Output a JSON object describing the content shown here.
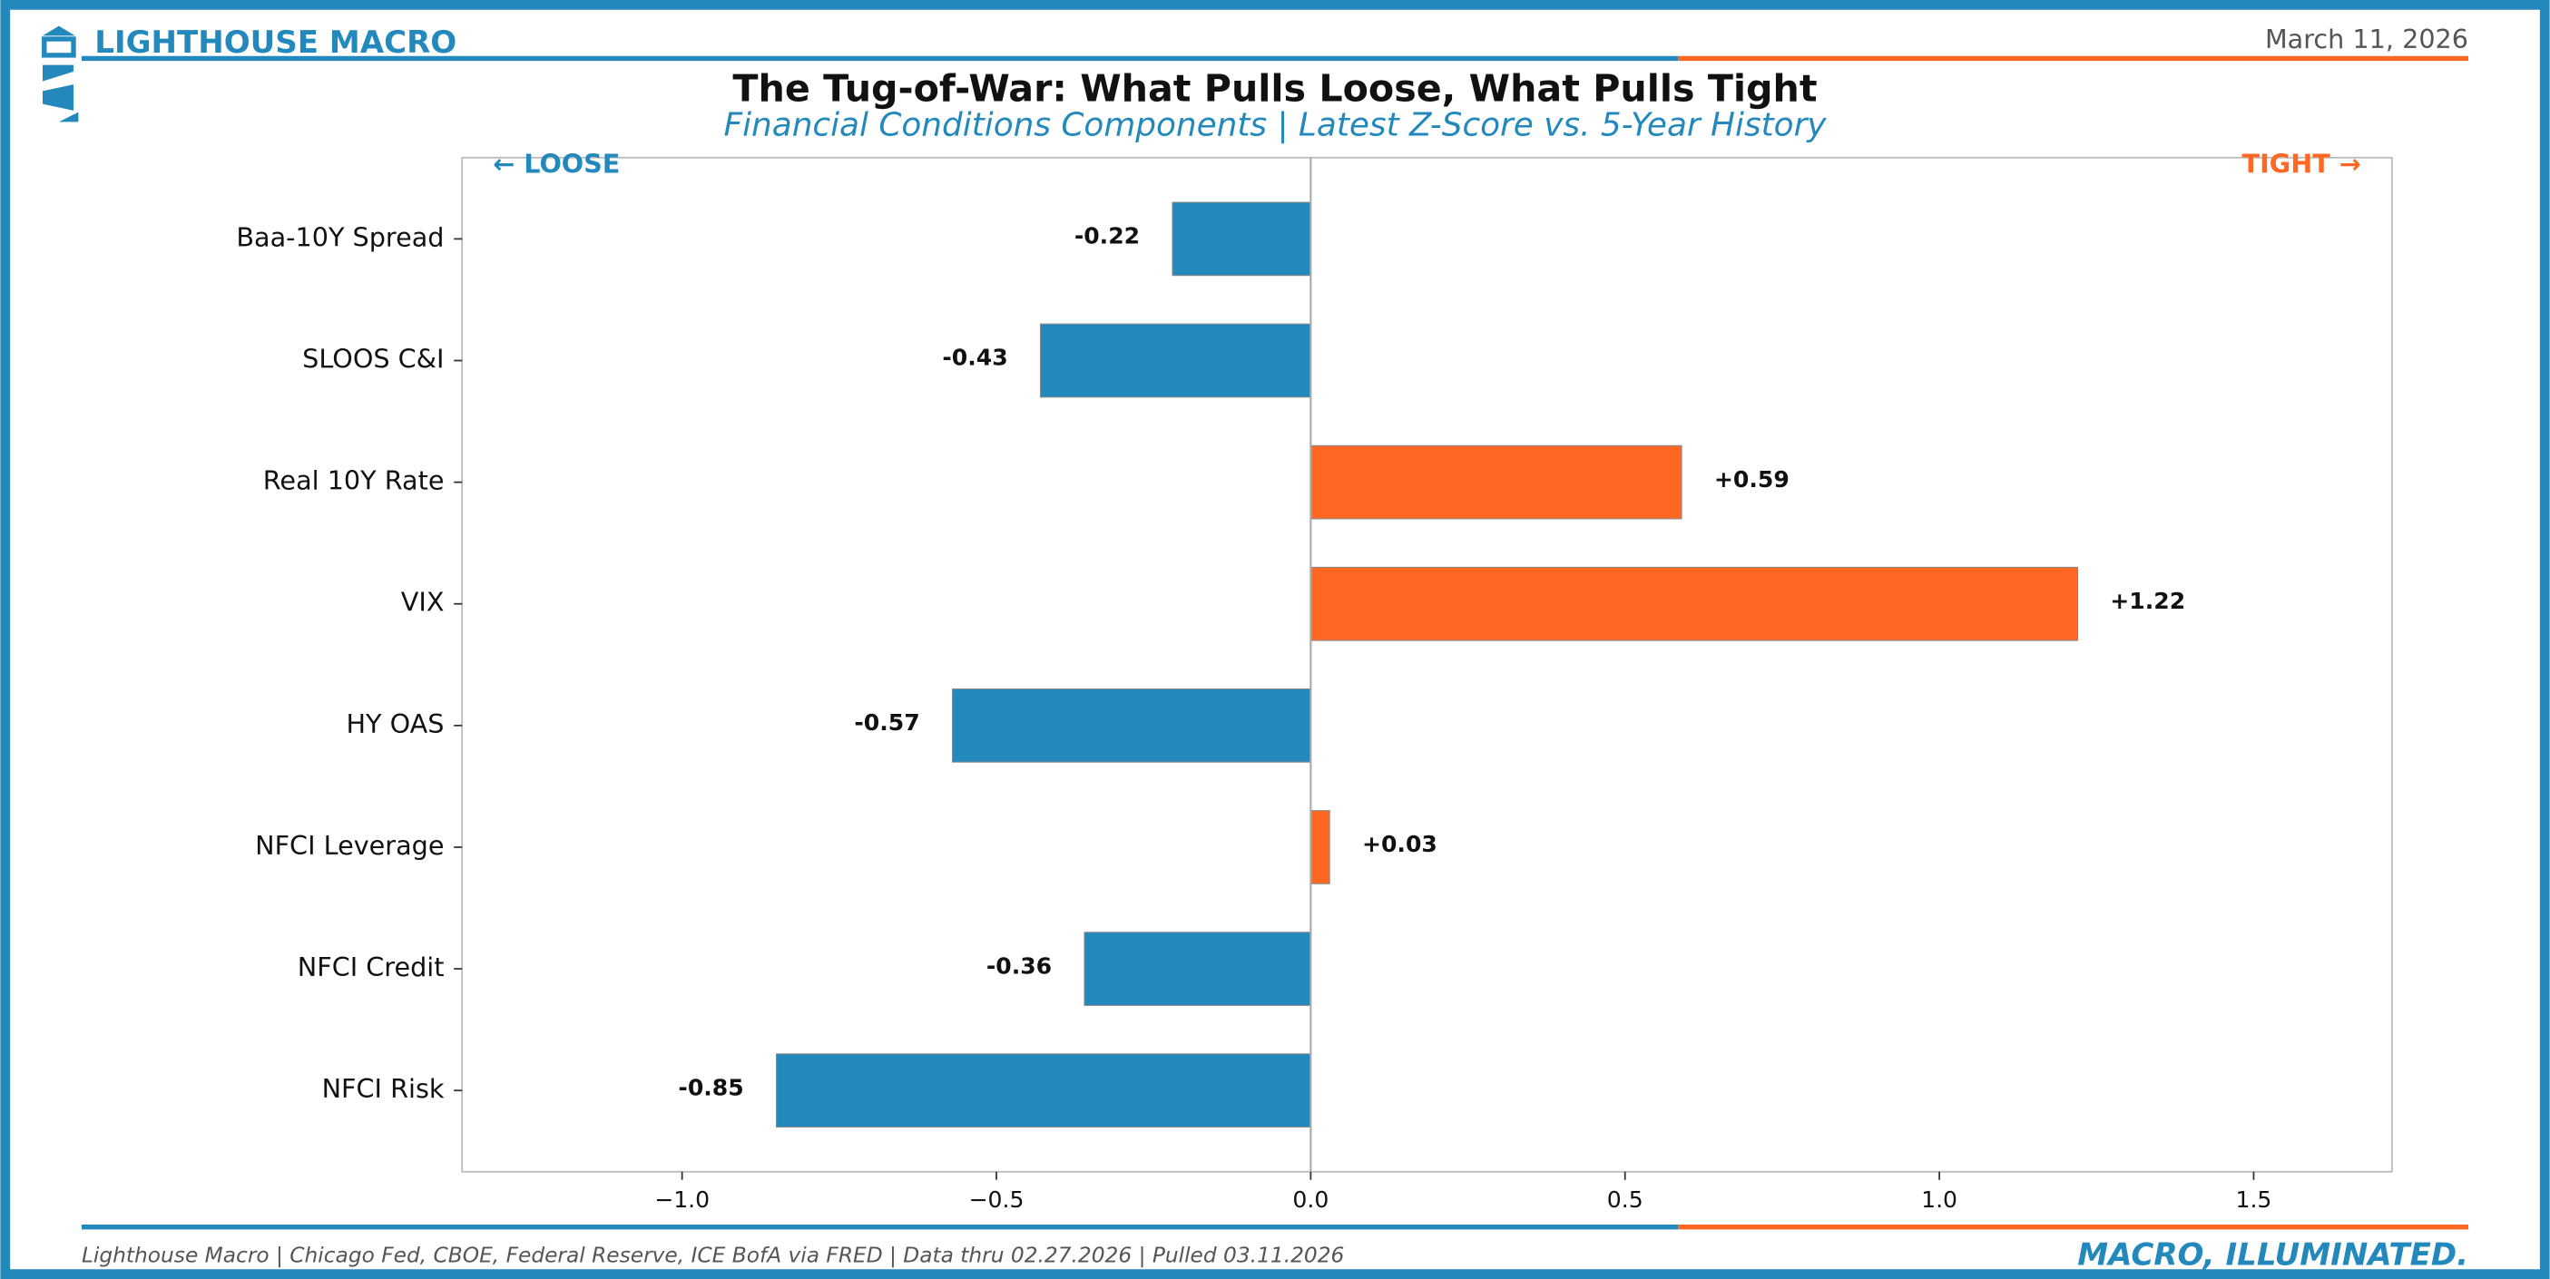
{
  "brand": "LIGHTHOUSE MACRO",
  "date": "March 11, 2026",
  "chart_data": {
    "type": "barh",
    "title": "The Tug-of-War: What Pulls Loose, What Pulls Tight",
    "subtitle": "Financial Conditions Components | Latest Z-Score vs. 5-Year History",
    "left_annotation": "← LOOSE",
    "right_annotation": "TIGHT →",
    "categories": [
      "Baa-10Y Spread",
      "SLOOS C&I",
      "Real 10Y Rate",
      "VIX",
      "HY OAS",
      "NFCI Leverage",
      "NFCI Credit",
      "NFCI Risk"
    ],
    "values": [
      -0.22,
      -0.43,
      0.59,
      1.22,
      -0.57,
      0.03,
      -0.36,
      -0.85
    ],
    "value_labels": [
      "-0.22",
      "-0.43",
      "+0.59",
      "+1.22",
      "-0.57",
      "+0.03",
      "-0.36",
      "-0.85"
    ],
    "colors": [
      "#2389bd",
      "#2389bd",
      "#ff6723",
      "#ff6723",
      "#2389bd",
      "#ff6723",
      "#2389bd",
      "#2389bd"
    ],
    "xlim": [
      -1.35,
      1.72
    ],
    "xticks": [
      {
        "value": -1.0,
        "label": "−1.0"
      },
      {
        "value": -0.5,
        "label": "−0.5"
      },
      {
        "value": 0.0,
        "label": "0.0"
      },
      {
        "value": 0.5,
        "label": "0.5"
      },
      {
        "value": 1.0,
        "label": "1.0"
      },
      {
        "value": 1.5,
        "label": "1.5"
      }
    ],
    "grid": false
  },
  "footer": {
    "source": "Lighthouse Macro | Chicago Fed, CBOE, Federal Reserve, ICE BofA via FRED | Data thru 02.27.2026 | Pulled 03.11.2026",
    "tagline": "MACRO, ILLUMINATED."
  }
}
